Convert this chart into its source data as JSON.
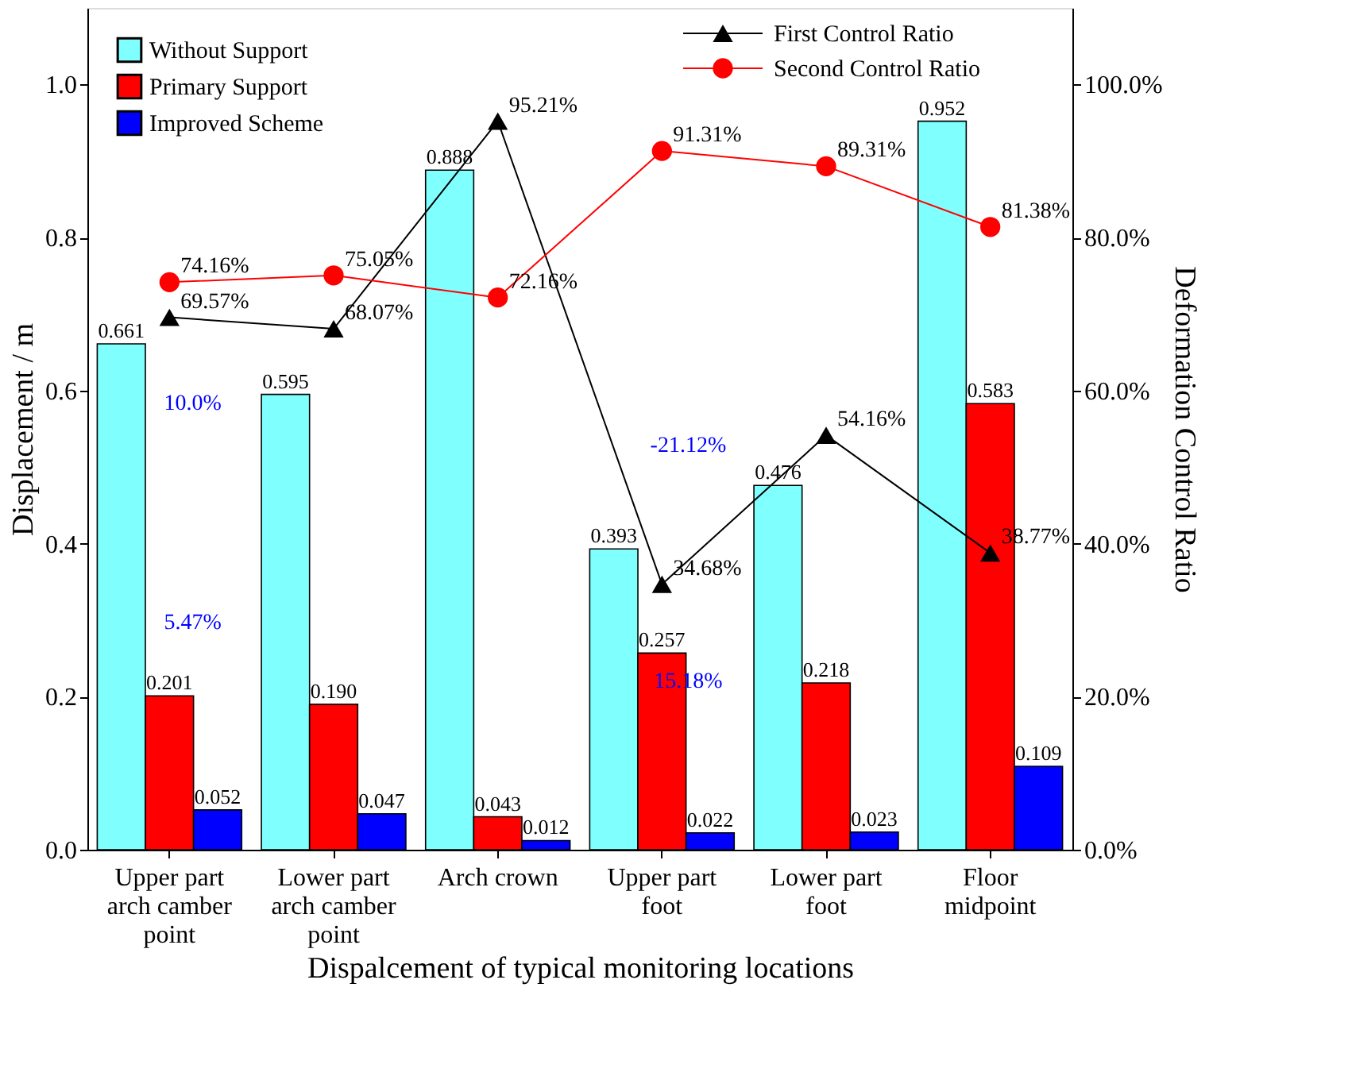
{
  "chart_data": {
    "type": "bar",
    "xlabel": "Dispalcement of typical monitoring locations",
    "ylabel": "Displacement / m",
    "y2label": "Deformation Control Ratio",
    "categories": [
      "Upper part arch camber point",
      "Lower part arch camber point",
      "Arch crown",
      "Upper part foot",
      "Lower part foot",
      "Floor midpoint"
    ],
    "series": [
      {
        "name": "Without Support",
        "color": "#80ffff",
        "values": [
          0.661,
          0.595,
          0.888,
          0.393,
          0.476,
          0.952
        ],
        "value_labels": [
          "0.661",
          "0.595",
          "0.888",
          "0.393",
          "0.476",
          "0.952"
        ]
      },
      {
        "name": "Primary Support",
        "color": "#ff0000",
        "values": [
          0.201,
          0.19,
          0.043,
          0.257,
          0.218,
          0.583
        ],
        "value_labels": [
          "0.201",
          "0.190",
          "0.043",
          "0.257",
          "0.218",
          "0.583"
        ]
      },
      {
        "name": "Improved Scheme",
        "color": "#0000ff",
        "values": [
          0.052,
          0.047,
          0.012,
          0.022,
          0.023,
          0.109
        ],
        "value_labels": [
          "0.052",
          "0.047",
          "0.012",
          "0.022",
          "0.023",
          "0.109"
        ]
      },
      {
        "name": "First Control Ratio",
        "type": "line",
        "axis": "y2",
        "marker": "triangle",
        "color": "#000000",
        "values": [
          69.57,
          68.07,
          95.21,
          34.68,
          54.16,
          38.77
        ],
        "value_labels": [
          "69.57%",
          "68.07%",
          "95.21%",
          "34.68%",
          "54.16%",
          "38.77%"
        ]
      },
      {
        "name": "Second Control Ratio",
        "type": "line",
        "axis": "y2",
        "marker": "circle",
        "color": "#ff0000",
        "values": [
          74.16,
          75.05,
          72.16,
          91.31,
          89.31,
          81.38
        ],
        "value_labels": [
          "74.16%",
          "75.05%",
          "72.16%",
          "91.31%",
          "89.31%",
          "81.38%"
        ]
      }
    ],
    "ylim": [
      0,
      1.1
    ],
    "yticks": [
      {
        "value": 0,
        "label": "0.0"
      },
      0.2,
      0.4,
      0.6,
      0.8,
      {
        "value": 1,
        "label": "1.0"
      }
    ],
    "y2lim": [
      0,
      110
    ],
    "y2ticks": [
      {
        "value": 0,
        "label": "0.0%"
      },
      {
        "value": 20,
        "label": "20.0%"
      },
      {
        "value": 40,
        "label": "40.0%"
      },
      {
        "value": 60,
        "label": "60.0%"
      },
      {
        "value": 80,
        "label": "80.0%"
      },
      {
        "value": 100,
        "label": "100.0%"
      }
    ],
    "annotations": [
      "10.0%",
      "5.47%",
      "-21.12%",
      "15.18%"
    ],
    "legend": "top",
    "grid": false
  }
}
